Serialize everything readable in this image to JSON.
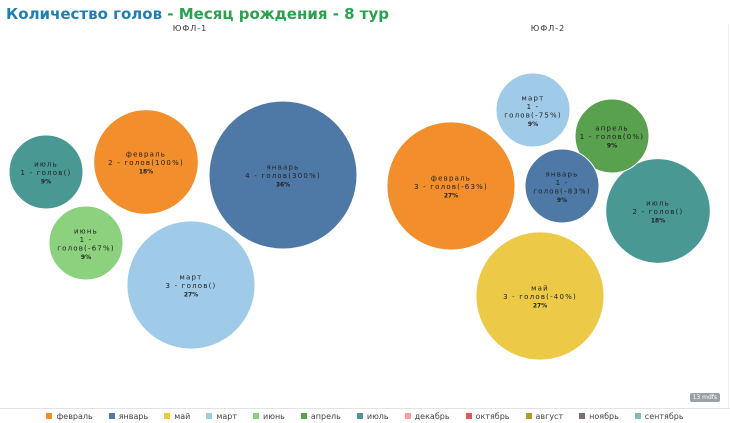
{
  "title_part1": "Количество голов",
  "title_part2": " - Месяц рождения - 8 тур",
  "timer": "13 mdfs",
  "colors": {
    "февраль": "#F28E2B",
    "январь": "#4E79A7",
    "май": "#EDC948",
    "март": "#A0CBE8",
    "июнь": "#8CD17D",
    "апрель": "#59A14F",
    "июль": "#499894",
    "декабрь": "#FF9D9A",
    "октябрь": "#E15759",
    "август": "#B6992D",
    "ноябрь": "#79706E",
    "сентябрь": "#86BCB6"
  },
  "legend": [
    "февраль",
    "январь",
    "май",
    "март",
    "июнь",
    "апрель",
    "июль",
    "декабрь",
    "октябрь",
    "август",
    "ноябрь",
    "сентябрь"
  ],
  "chart_data": [
    {
      "type": "bubble",
      "panel": "ЮФЛ-1",
      "bubbles": [
        {
          "month": "январь",
          "line1": "январь",
          "line2": "4 - голов(300%)",
          "pct": "36%",
          "goals": 4
        },
        {
          "month": "март",
          "line1": "март",
          "line2": "3 - голов()",
          "pct": "27%",
          "goals": 3
        },
        {
          "month": "февраль",
          "line1": "февраль",
          "line2": "2 - голов(100%)",
          "pct": "18%",
          "goals": 2
        },
        {
          "month": "июль",
          "line1": "июль",
          "line2": "1 - голов()",
          "pct": "9%",
          "goals": 1
        },
        {
          "month": "июнь",
          "line1": "июнь",
          "line2": "1 -",
          "line3": "голов(-67%)",
          "pct": "9%",
          "goals": 1
        }
      ]
    },
    {
      "type": "bubble",
      "panel": "ЮФЛ-2",
      "bubbles": [
        {
          "month": "февраль",
          "line1": "февраль",
          "line2": "3 - голов(-63%)",
          "pct": "27%",
          "goals": 3
        },
        {
          "month": "май",
          "line1": "май",
          "line2": "3 - голов(-40%)",
          "pct": "27%",
          "goals": 3
        },
        {
          "month": "июль",
          "line1": "июль",
          "line2": "2 - голов()",
          "pct": "18%",
          "goals": 2
        },
        {
          "month": "март",
          "line1": "март",
          "line2": "1 -",
          "line3": "голов(-75%)",
          "pct": "9%",
          "goals": 1
        },
        {
          "month": "апрель",
          "line1": "апрель",
          "line2": "1 - голов(0%)",
          "pct": "9%",
          "goals": 1
        },
        {
          "month": "январь",
          "line1": "январь",
          "line2": "1 -",
          "line3": "голов(-83%)",
          "pct": "9%",
          "goals": 1
        }
      ]
    }
  ]
}
